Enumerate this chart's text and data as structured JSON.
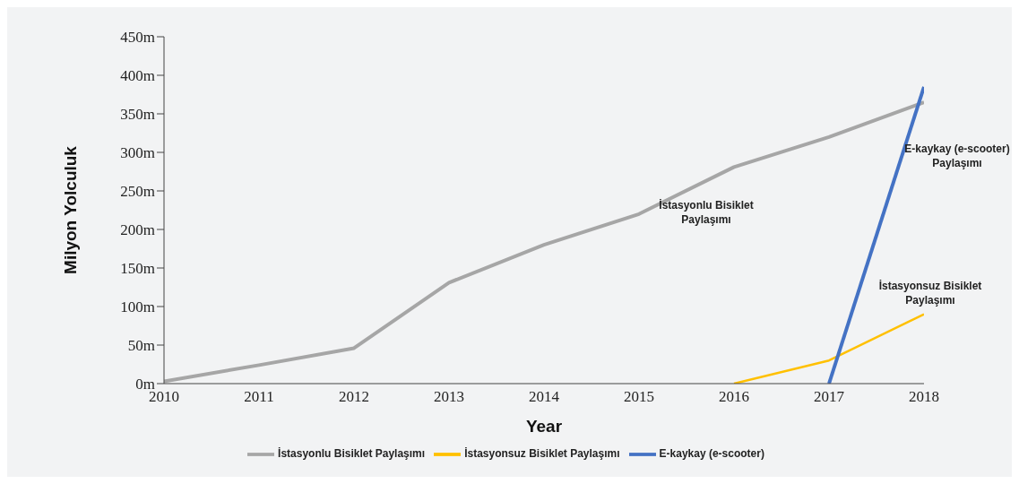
{
  "chart_data": {
    "type": "line",
    "xlabel": "Year",
    "ylabel": "Milyon Yolculuk",
    "x": [
      2010,
      2011,
      2012,
      2013,
      2014,
      2015,
      2016,
      2017,
      2018
    ],
    "series": [
      {
        "name": "İstasyonlu Bisiklet Paylaşımı",
        "color": "#a6a6a6",
        "values": [
          3,
          24,
          46,
          131,
          180,
          220,
          281,
          320,
          365
        ]
      },
      {
        "name": "İstasyonsuz Bisiklet Paylaşımı",
        "color": "#ffc000",
        "values": [
          null,
          null,
          null,
          null,
          null,
          null,
          0,
          30,
          90
        ]
      },
      {
        "name": "E-kaykay (e-scooter)",
        "color": "#4472c4",
        "values": [
          null,
          null,
          null,
          null,
          null,
          null,
          null,
          0,
          385
        ]
      }
    ],
    "xlim": [
      2010,
      2018
    ],
    "xticks": [
      2010,
      2011,
      2012,
      2013,
      2014,
      2015,
      2016,
      2017,
      2018
    ],
    "ylim": [
      0,
      450
    ],
    "yticks": [
      {
        "value": 0,
        "label": "0m"
      },
      {
        "value": 50,
        "label": "50m"
      },
      {
        "value": 100,
        "label": "100m"
      },
      {
        "value": 150,
        "label": "150m"
      },
      {
        "value": 200,
        "label": "200m"
      },
      {
        "value": 250,
        "label": "250m"
      },
      {
        "value": 300,
        "label": "300m"
      },
      {
        "value": 350,
        "label": "350m"
      },
      {
        "value": 400,
        "label": "400m"
      },
      {
        "value": 450,
        "label": "450m"
      }
    ],
    "annotations": [
      "İstasyonlu Bisiklet Paylaşımı",
      "E-kaykay (e-scooter) Paylaşımı",
      "İstasyonsuz Bisiklet Paylaşımı"
    ],
    "grid": false,
    "legend": "bottom",
    "marker": "none",
    "line_style": "solid"
  }
}
